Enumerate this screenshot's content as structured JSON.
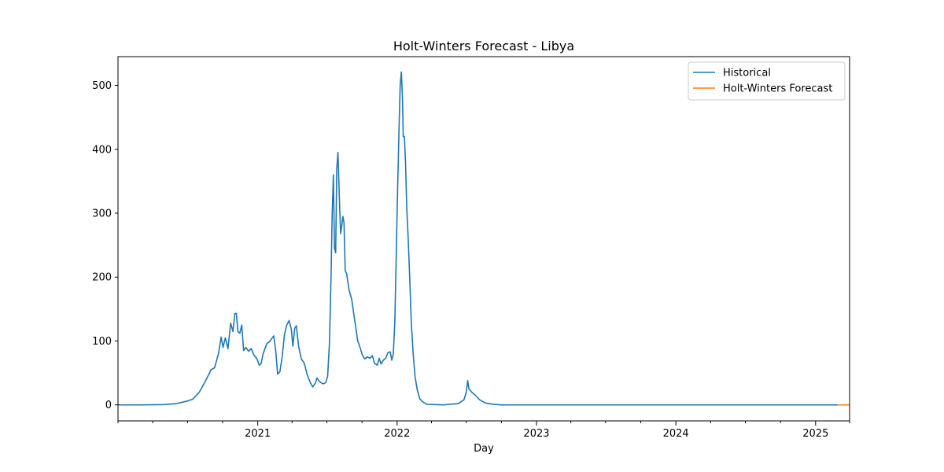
{
  "chart_data": {
    "type": "line",
    "title": "Holt-Winters Forecast - Libya",
    "xlabel": "Day",
    "ylabel": "",
    "xlim": [
      "2020-01-01",
      "2025-03-31"
    ],
    "ylim": [
      -25,
      545
    ],
    "x_ticks": [
      "2021",
      "2022",
      "2023",
      "2024",
      "2025"
    ],
    "y_ticks": [
      0,
      100,
      200,
      300,
      400,
      500
    ],
    "legend_position": "top-right",
    "grid": false,
    "series": [
      {
        "name": "Historical",
        "color": "#1f77b4",
        "points": [
          [
            "2020-01-01",
            0
          ],
          [
            "2020-03-01",
            0
          ],
          [
            "2020-05-01",
            0.5
          ],
          [
            "2020-06-01",
            2
          ],
          [
            "2020-07-01",
            6
          ],
          [
            "2020-07-15",
            9
          ],
          [
            "2020-08-01",
            20
          ],
          [
            "2020-08-15",
            35
          ],
          [
            "2020-09-01",
            55
          ],
          [
            "2020-09-10",
            58
          ],
          [
            "2020-09-20",
            80
          ],
          [
            "2020-09-27",
            106
          ],
          [
            "2020-10-02",
            90
          ],
          [
            "2020-10-08",
            105
          ],
          [
            "2020-10-15",
            88
          ],
          [
            "2020-10-22",
            128
          ],
          [
            "2020-10-28",
            115
          ],
          [
            "2020-11-02",
            143
          ],
          [
            "2020-11-06",
            143
          ],
          [
            "2020-11-10",
            115
          ],
          [
            "2020-11-15",
            112
          ],
          [
            "2020-11-20",
            125
          ],
          [
            "2020-11-25",
            85
          ],
          [
            "2020-12-01",
            90
          ],
          [
            "2020-12-08",
            84
          ],
          [
            "2020-12-15",
            88
          ],
          [
            "2020-12-22",
            78
          ],
          [
            "2020-12-30",
            72
          ],
          [
            "2021-01-05",
            62
          ],
          [
            "2021-01-10",
            65
          ],
          [
            "2021-01-15",
            80
          ],
          [
            "2021-01-25",
            96
          ],
          [
            "2021-02-01",
            99
          ],
          [
            "2021-02-08",
            105
          ],
          [
            "2021-02-12",
            108
          ],
          [
            "2021-02-17",
            85
          ],
          [
            "2021-02-22",
            48
          ],
          [
            "2021-02-28",
            52
          ],
          [
            "2021-03-06",
            75
          ],
          [
            "2021-03-12",
            110
          ],
          [
            "2021-03-18",
            125
          ],
          [
            "2021-03-24",
            132
          ],
          [
            "2021-03-30",
            118
          ],
          [
            "2021-04-03",
            92
          ],
          [
            "2021-04-08",
            120
          ],
          [
            "2021-04-12",
            124
          ],
          [
            "2021-04-18",
            92
          ],
          [
            "2021-04-25",
            72
          ],
          [
            "2021-05-03",
            65
          ],
          [
            "2021-05-10",
            48
          ],
          [
            "2021-05-17",
            37
          ],
          [
            "2021-05-25",
            28
          ],
          [
            "2021-06-01",
            34
          ],
          [
            "2021-06-05",
            42
          ],
          [
            "2021-06-10",
            38
          ],
          [
            "2021-06-15",
            35
          ],
          [
            "2021-06-22",
            33
          ],
          [
            "2021-06-28",
            35
          ],
          [
            "2021-07-03",
            45
          ],
          [
            "2021-07-08",
            100
          ],
          [
            "2021-07-12",
            200
          ],
          [
            "2021-07-15",
            300
          ],
          [
            "2021-07-18",
            360
          ],
          [
            "2021-07-21",
            245
          ],
          [
            "2021-07-24",
            238
          ],
          [
            "2021-07-27",
            370
          ],
          [
            "2021-07-30",
            395
          ],
          [
            "2021-08-03",
            320
          ],
          [
            "2021-08-06",
            268
          ],
          [
            "2021-08-09",
            280
          ],
          [
            "2021-08-12",
            295
          ],
          [
            "2021-08-15",
            285
          ],
          [
            "2021-08-18",
            210
          ],
          [
            "2021-08-22",
            205
          ],
          [
            "2021-08-28",
            180
          ],
          [
            "2021-09-04",
            165
          ],
          [
            "2021-09-10",
            140
          ],
          [
            "2021-09-15",
            120
          ],
          [
            "2021-09-20",
            100
          ],
          [
            "2021-09-26",
            90
          ],
          [
            "2021-10-02",
            78
          ],
          [
            "2021-10-08",
            72
          ],
          [
            "2021-10-15",
            75
          ],
          [
            "2021-10-22",
            73
          ],
          [
            "2021-10-28",
            77
          ],
          [
            "2021-11-03",
            65
          ],
          [
            "2021-11-10",
            62
          ],
          [
            "2021-11-15",
            73
          ],
          [
            "2021-11-20",
            64
          ],
          [
            "2021-11-26",
            70
          ],
          [
            "2021-12-02",
            73
          ],
          [
            "2021-12-08",
            82
          ],
          [
            "2021-12-14",
            83
          ],
          [
            "2021-12-18",
            70
          ],
          [
            "2021-12-22",
            80
          ],
          [
            "2021-12-26",
            130
          ],
          [
            "2021-12-30",
            240
          ],
          [
            "2022-01-02",
            330
          ],
          [
            "2022-01-06",
            430
          ],
          [
            "2022-01-09",
            500
          ],
          [
            "2022-01-12",
            521
          ],
          [
            "2022-01-15",
            480
          ],
          [
            "2022-01-17",
            420
          ],
          [
            "2022-01-20",
            420
          ],
          [
            "2022-01-23",
            380
          ],
          [
            "2022-01-26",
            310
          ],
          [
            "2022-01-30",
            260
          ],
          [
            "2022-02-03",
            200
          ],
          [
            "2022-02-07",
            130
          ],
          [
            "2022-02-12",
            80
          ],
          [
            "2022-02-17",
            45
          ],
          [
            "2022-02-22",
            25
          ],
          [
            "2022-03-01",
            10
          ],
          [
            "2022-03-08",
            5
          ],
          [
            "2022-03-20",
            1
          ],
          [
            "2022-05-01",
            0
          ],
          [
            "2022-06-10",
            2
          ],
          [
            "2022-06-25",
            8
          ],
          [
            "2022-07-01",
            20
          ],
          [
            "2022-07-05",
            38
          ],
          [
            "2022-07-08",
            25
          ],
          [
            "2022-07-15",
            20
          ],
          [
            "2022-07-25",
            15
          ],
          [
            "2022-08-05",
            8
          ],
          [
            "2022-08-20",
            3
          ],
          [
            "2022-09-10",
            1
          ],
          [
            "2022-10-01",
            0
          ],
          [
            "2023-06-01",
            0
          ],
          [
            "2024-06-01",
            0
          ],
          [
            "2025-02-28",
            0
          ]
        ]
      },
      {
        "name": "Holt-Winters Forecast",
        "color": "#ff7f0e",
        "points": [
          [
            "2025-03-01",
            0
          ],
          [
            "2025-03-31",
            0
          ]
        ]
      }
    ]
  }
}
